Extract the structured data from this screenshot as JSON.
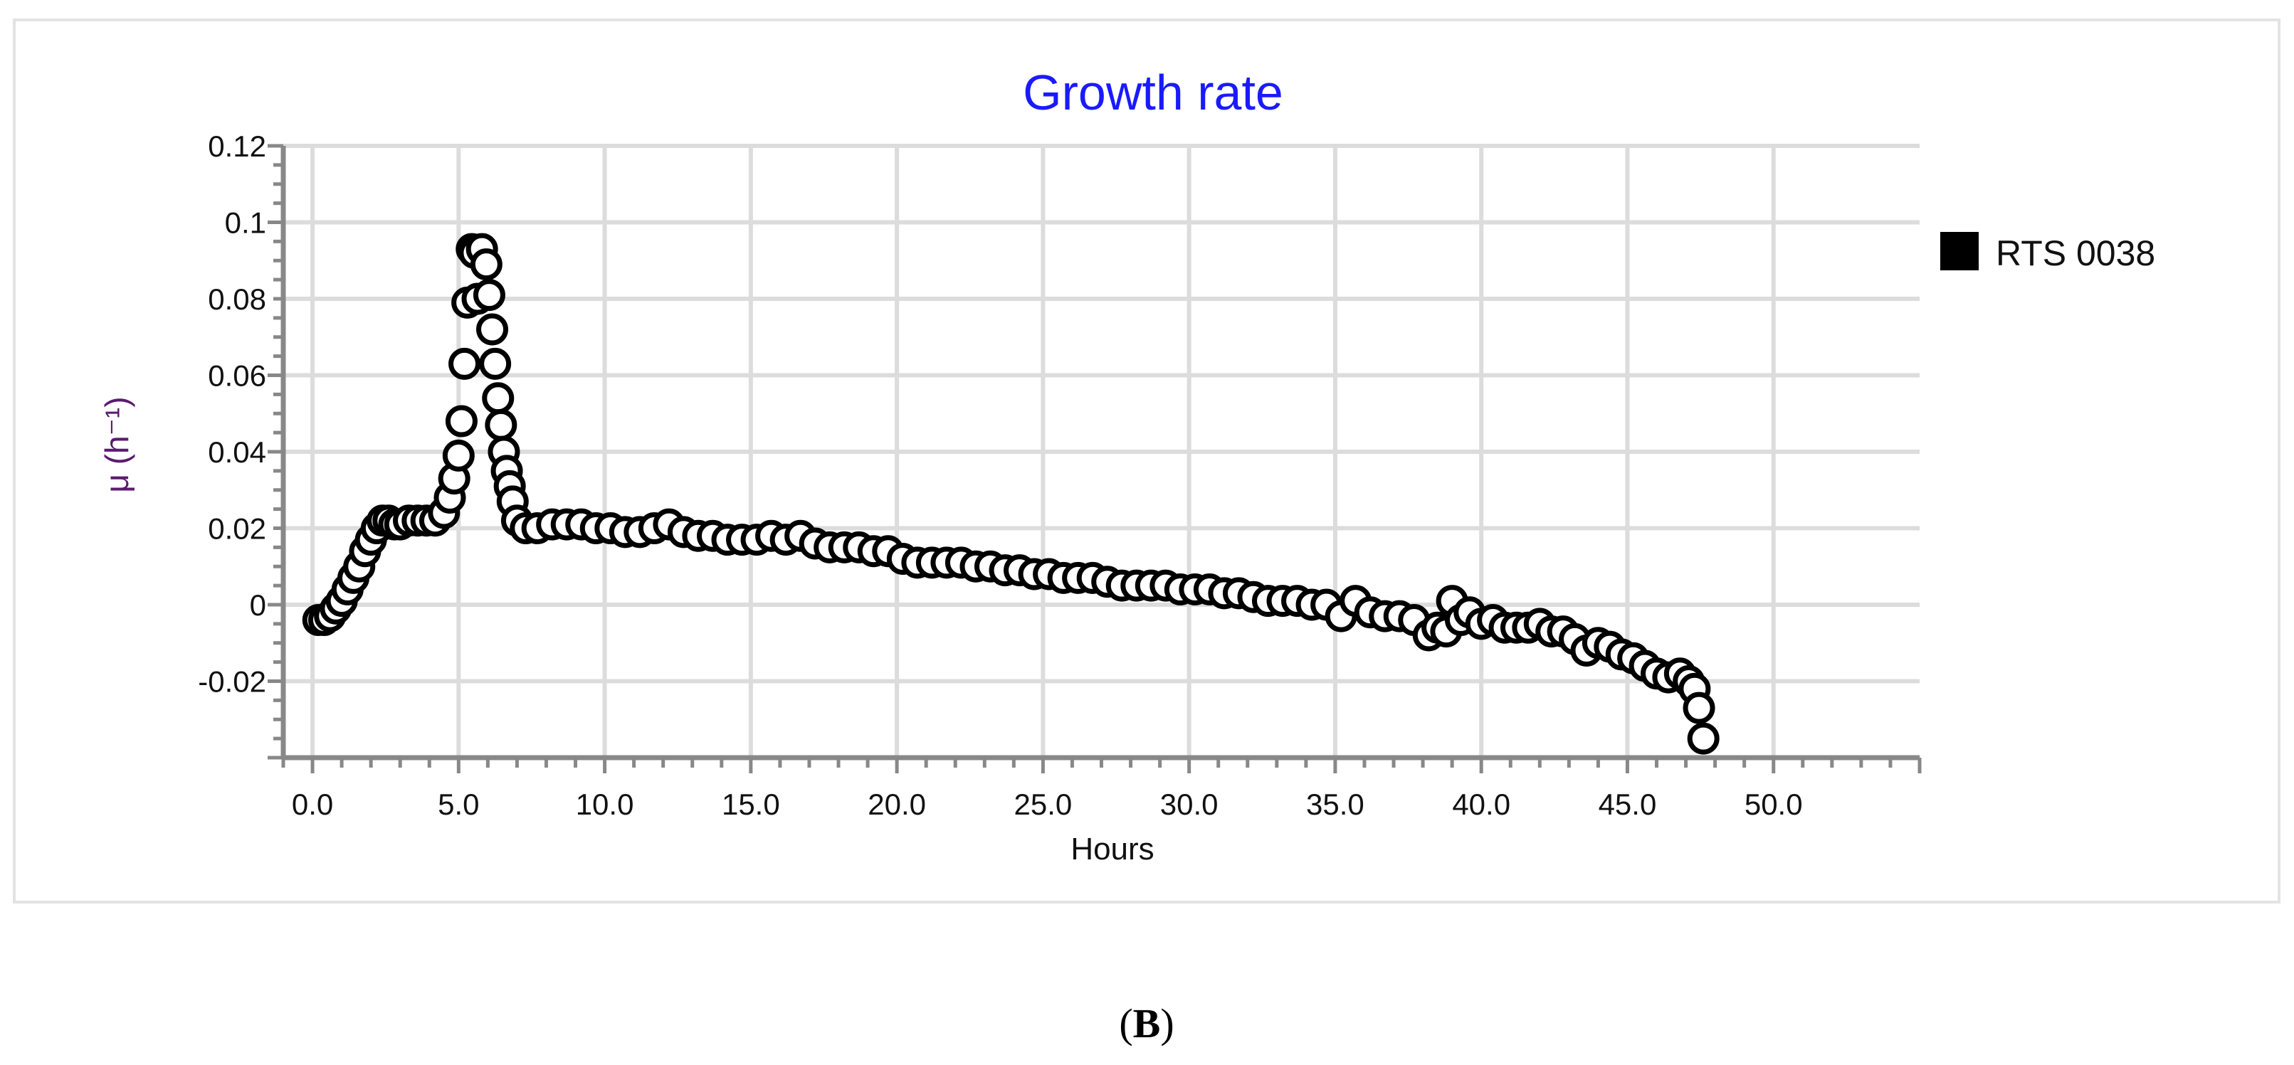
{
  "chart_data": {
    "type": "scatter",
    "title": "Growth rate",
    "xlabel": "Hours",
    "ylabel": "μ (h⁻¹)",
    "xlim": [
      -1,
      55
    ],
    "ylim": [
      -0.04,
      0.12
    ],
    "xticks": [
      0,
      5,
      10,
      15,
      20,
      25,
      30,
      35,
      40,
      45,
      50
    ],
    "xtick_labels": [
      "0.0",
      "5.0",
      "10.0",
      "15.0",
      "20.0",
      "25.0",
      "30.0",
      "35.0",
      "40.0",
      "45.0",
      "50.0"
    ],
    "yticks": [
      -0.02,
      0,
      0.02,
      0.04,
      0.06,
      0.08,
      0.1,
      0.12
    ],
    "ytick_labels": [
      "-0.02",
      "0",
      "0.02",
      "0.04",
      "0.06",
      "0.08",
      "0.1",
      "0.12"
    ],
    "grid": true,
    "legend_position": "right",
    "colors": {
      "title": "#1a1aff",
      "marker_edge": "#000000",
      "marker_fill": "#ffffff",
      "grid": "#dcdcdc",
      "axis": "#888888",
      "ylabel": "#5a1a6e"
    },
    "series": [
      {
        "name": "RTS 0038",
        "x": [
          0.2,
          0.4,
          0.6,
          0.8,
          1.0,
          1.2,
          1.4,
          1.6,
          1.8,
          2.0,
          2.2,
          2.4,
          2.6,
          2.8,
          3.0,
          3.3,
          3.6,
          3.9,
          4.2,
          4.5,
          4.7,
          4.85,
          5.0,
          5.1,
          5.2,
          5.3,
          5.45,
          5.55,
          5.65,
          5.8,
          5.95,
          6.05,
          6.15,
          6.25,
          6.35,
          6.45,
          6.55,
          6.65,
          6.75,
          6.85,
          7.0,
          7.3,
          7.7,
          8.2,
          8.7,
          9.2,
          9.7,
          10.2,
          10.7,
          11.2,
          11.7,
          12.2,
          12.7,
          13.2,
          13.7,
          14.2,
          14.7,
          15.2,
          15.7,
          16.2,
          16.7,
          17.2,
          17.7,
          18.2,
          18.7,
          19.2,
          19.7,
          20.2,
          20.7,
          21.2,
          21.7,
          22.2,
          22.7,
          23.2,
          23.7,
          24.2,
          24.7,
          25.2,
          25.7,
          26.2,
          26.7,
          27.2,
          27.7,
          28.2,
          28.7,
          29.2,
          29.7,
          30.2,
          30.7,
          31.2,
          31.7,
          32.2,
          32.7,
          33.2,
          33.7,
          34.2,
          34.7,
          35.2,
          35.7,
          36.2,
          36.7,
          37.2,
          37.7,
          38.2,
          38.5,
          38.8,
          39.0,
          39.3,
          39.6,
          40.0,
          40.4,
          40.8,
          41.2,
          41.6,
          42.0,
          42.4,
          42.8,
          43.2,
          43.6,
          44.0,
          44.4,
          44.8,
          45.2,
          45.6,
          46.0,
          46.4,
          46.8,
          47.1,
          47.3,
          47.45,
          47.6
        ],
        "y": [
          -0.004,
          -0.004,
          -0.003,
          -0.001,
          0.001,
          0.004,
          0.007,
          0.01,
          0.014,
          0.017,
          0.02,
          0.022,
          0.022,
          0.021,
          0.021,
          0.022,
          0.022,
          0.022,
          0.022,
          0.024,
          0.028,
          0.033,
          0.039,
          0.048,
          0.063,
          0.079,
          0.093,
          0.092,
          0.08,
          0.093,
          0.089,
          0.081,
          0.072,
          0.063,
          0.054,
          0.047,
          0.04,
          0.035,
          0.031,
          0.027,
          0.022,
          0.02,
          0.02,
          0.021,
          0.021,
          0.021,
          0.02,
          0.02,
          0.019,
          0.019,
          0.02,
          0.021,
          0.019,
          0.018,
          0.018,
          0.017,
          0.017,
          0.017,
          0.018,
          0.017,
          0.018,
          0.016,
          0.015,
          0.015,
          0.015,
          0.014,
          0.014,
          0.012,
          0.011,
          0.011,
          0.011,
          0.011,
          0.01,
          0.01,
          0.009,
          0.009,
          0.008,
          0.008,
          0.007,
          0.007,
          0.007,
          0.006,
          0.005,
          0.005,
          0.005,
          0.005,
          0.004,
          0.004,
          0.004,
          0.003,
          0.003,
          0.002,
          0.001,
          0.001,
          0.001,
          0.0,
          0.0,
          -0.003,
          0.001,
          -0.002,
          -0.003,
          -0.003,
          -0.004,
          -0.008,
          -0.006,
          -0.007,
          0.001,
          -0.004,
          -0.002,
          -0.005,
          -0.004,
          -0.006,
          -0.006,
          -0.006,
          -0.005,
          -0.007,
          -0.007,
          -0.009,
          -0.012,
          -0.01,
          -0.011,
          -0.013,
          -0.014,
          -0.016,
          -0.018,
          -0.019,
          -0.018,
          -0.02,
          -0.022,
          -0.027,
          -0.035
        ]
      }
    ]
  },
  "legend": {
    "label": "RTS 0038"
  },
  "panel_label": {
    "open": "(",
    "letter": "B",
    "close": ")"
  }
}
